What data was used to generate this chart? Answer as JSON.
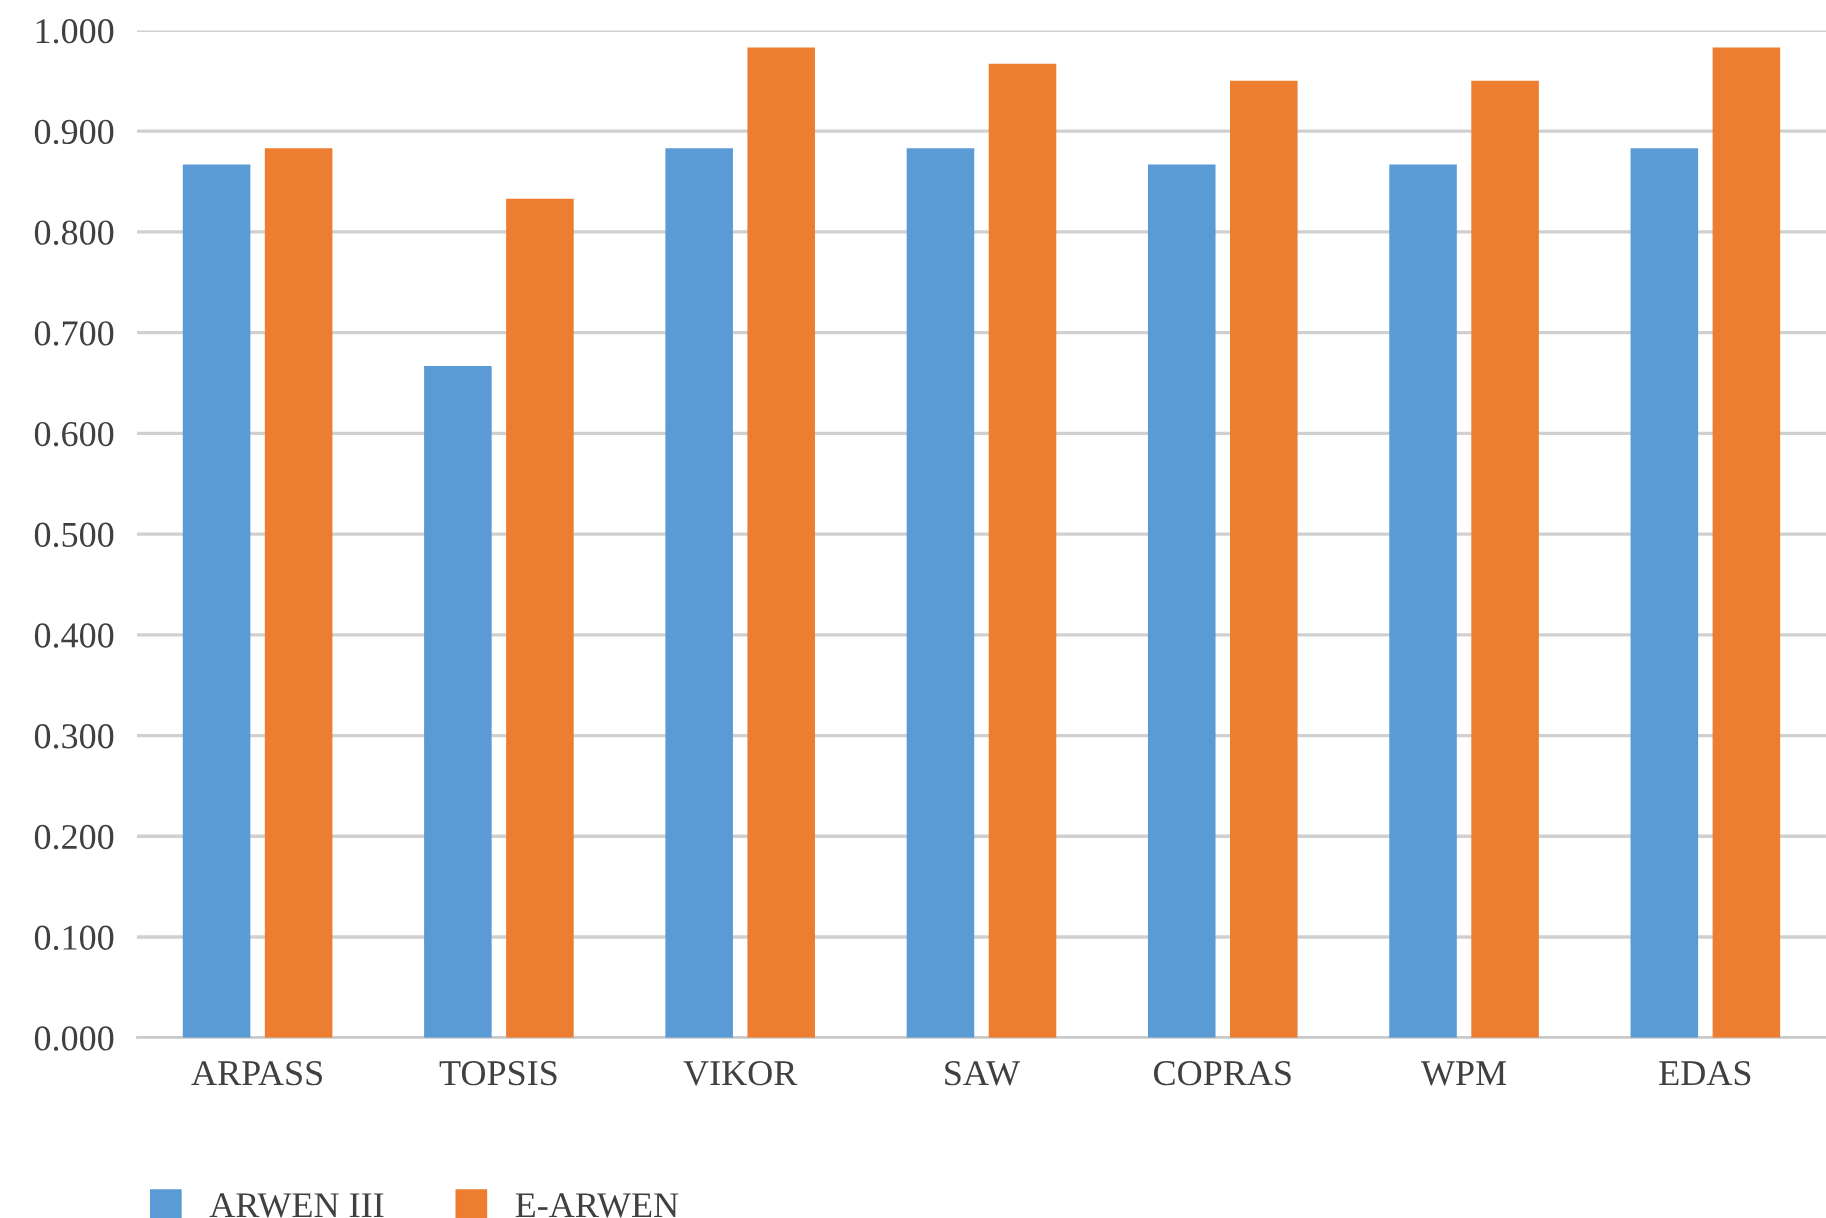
{
  "chart_data": {
    "type": "bar",
    "categories": [
      "ARPASS",
      "TOPSIS",
      "VIKOR",
      "SAW",
      "COPRAS",
      "WPM",
      "EDAS"
    ],
    "series": [
      {
        "name": "ARWEN III",
        "color": "#5b9bd5",
        "values": [
          0.867,
          0.667,
          0.883,
          0.883,
          0.867,
          0.867,
          0.883
        ]
      },
      {
        "name": "E-ARWEN",
        "color": "#ed7d31",
        "values": [
          0.883,
          0.833,
          0.983,
          0.967,
          0.95,
          0.95,
          0.983
        ]
      }
    ],
    "ylim": [
      0,
      1
    ],
    "yticks": [
      {
        "value": 0,
        "label": "0.000"
      },
      {
        "value": 0.1,
        "label": "0.100"
      },
      {
        "value": 0.2,
        "label": "0.200"
      },
      {
        "value": 0.3,
        "label": "0.300"
      },
      {
        "value": 0.4,
        "label": "0.400"
      },
      {
        "value": 0.5,
        "label": "0.500"
      },
      {
        "value": 0.6,
        "label": "0.600"
      },
      {
        "value": 0.7,
        "label": "0.700"
      },
      {
        "value": 0.8,
        "label": "0.800"
      },
      {
        "value": 0.9,
        "label": "0.900"
      },
      {
        "value": 1,
        "label": "1.000"
      }
    ],
    "grid": "y",
    "legend": "bottom left"
  }
}
